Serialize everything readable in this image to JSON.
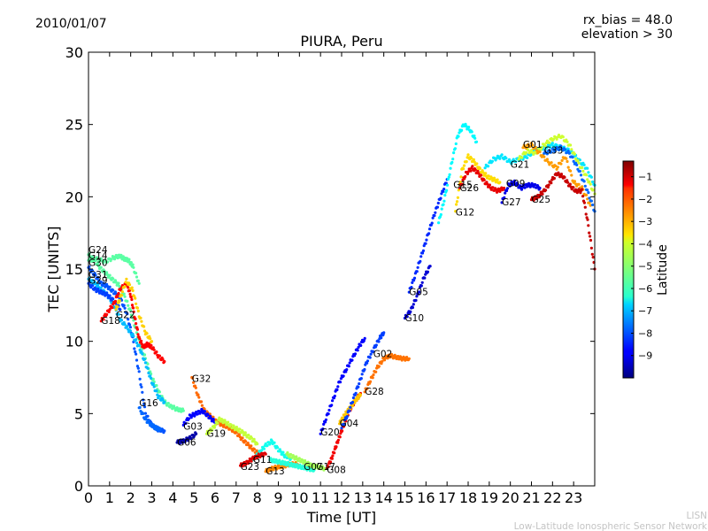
{
  "header": {
    "date": "2010/01/07",
    "bias": "rx_bias = 48.0",
    "elevation": "elevation > 30"
  },
  "watermark": {
    "line1": "LISN",
    "line2": "Low-Latitude Ionospheric Sensor Network"
  },
  "chart_data": {
    "type": "scatter",
    "title": "PIURA, Peru",
    "xlabel": "Time [UT]",
    "ylabel": "TEC [UNITS]",
    "xlim": [
      0,
      24
    ],
    "ylim": [
      0,
      30
    ],
    "xticks": [
      0,
      1,
      2,
      3,
      4,
      5,
      6,
      7,
      8,
      9,
      10,
      11,
      12,
      13,
      14,
      15,
      16,
      17,
      18,
      19,
      20,
      21,
      22,
      23
    ],
    "yticks": [
      0,
      5,
      10,
      15,
      20,
      25,
      30
    ],
    "colorbar": {
      "label": "Latitude",
      "range": [
        -10,
        -0.3
      ],
      "ticks": [
        -1,
        -2,
        -3,
        -4,
        -5,
        -6,
        -7,
        -8,
        -9
      ]
    },
    "series": [
      {
        "name": "G24",
        "lat": -5.5,
        "label": [
          0,
          16.1
        ],
        "x": [
          0,
          0.3,
          0.6,
          0.9,
          1.2,
          1.5,
          1.8,
          2.1,
          2.4,
          2.7,
          3.0,
          3.3,
          3.6,
          3.9,
          4.2,
          4.5
        ],
        "y": [
          16.0,
          15.6,
          15.0,
          14.6,
          14.2,
          13.8,
          12.8,
          11.6,
          10.0,
          8.8,
          7.5,
          6.6,
          5.8,
          5.5,
          5.3,
          5.2
        ]
      },
      {
        "name": "G14",
        "lat": -5.5,
        "label": [
          0,
          15.7
        ],
        "x": [
          0,
          0.4,
          0.8,
          1.2,
          1.5,
          1.7,
          1.9,
          2.1,
          2.4
        ],
        "y": [
          15.6,
          15.7,
          15.5,
          15.8,
          15.9,
          15.7,
          15.6,
          15.2,
          14.0
        ]
      },
      {
        "name": "G30",
        "lat": -8.0,
        "label": [
          0,
          15.2
        ],
        "x": [
          0,
          0.3,
          0.6,
          0.9,
          1.2,
          1.5,
          1.8,
          2.1,
          2.4,
          2.7,
          3.0,
          3.3,
          3.6
        ],
        "y": [
          15.1,
          14.6,
          14.0,
          13.8,
          13.4,
          13.0,
          12.0,
          10.2,
          7.8,
          5.0,
          4.2,
          3.9,
          3.8
        ]
      },
      {
        "name": "G31",
        "lat": -7.0,
        "label": [
          0,
          14.4
        ],
        "x": [
          0,
          0.3,
          0.6,
          0.9,
          1.2,
          1.5,
          1.8,
          2.1,
          2.4,
          2.7,
          3.0,
          3.3,
          3.6
        ],
        "y": [
          14.3,
          14.0,
          13.6,
          13.2,
          12.5,
          11.5,
          11.0,
          10.4,
          9.6,
          8.5,
          7.2,
          6.2,
          5.8
        ]
      },
      {
        "name": "G29",
        "lat": -8.2,
        "label": [
          0,
          14.0
        ],
        "x": [
          0,
          0.3,
          0.6,
          0.9,
          1.2,
          1.5
        ],
        "y": [
          14.0,
          13.6,
          13.4,
          13.2,
          12.8,
          12.2
        ]
      },
      {
        "name": "G18",
        "lat": -1.5,
        "label": [
          0.6,
          11.2
        ],
        "x": [
          0.6,
          0.9,
          1.2,
          1.5,
          1.8,
          2.0,
          2.2,
          2.4,
          2.6,
          2.8,
          3.0,
          3.3,
          3.6
        ],
        "y": [
          11.4,
          12.0,
          12.6,
          13.6,
          14.0,
          13.2,
          11.6,
          10.2,
          9.6,
          9.8,
          9.6,
          9.0,
          8.6
        ]
      },
      {
        "name": "G22",
        "lat": -3.5,
        "label": [
          1.3,
          11.6
        ],
        "x": [
          1.3,
          1.5,
          1.8,
          2.1,
          2.4,
          2.7,
          3.0
        ],
        "y": [
          12.2,
          13.0,
          14.2,
          13.5,
          11.8,
          10.6,
          10.0
        ]
      },
      {
        "name": "G16",
        "lat": -7.8,
        "label": [
          2.4,
          5.5
        ],
        "x": [
          2.4,
          2.7,
          3.0,
          3.2,
          3.4
        ],
        "y": [
          5.4,
          4.6,
          4.2,
          4.0,
          3.9
        ]
      },
      {
        "name": "G32",
        "lat": -2.5,
        "label": [
          4.9,
          7.2
        ],
        "x": [
          4.9,
          5.2,
          5.5,
          5.8,
          6.1,
          6.4,
          6.7,
          7.0,
          7.3,
          7.6,
          7.9,
          8.2
        ],
        "y": [
          7.5,
          6.2,
          5.2,
          4.8,
          4.4,
          4.2,
          4.0,
          3.7,
          3.2,
          2.8,
          2.4,
          2.1
        ]
      },
      {
        "name": "G03",
        "lat": -8.8,
        "label": [
          4.5,
          3.9
        ],
        "x": [
          4.5,
          4.8,
          5.1,
          5.4,
          5.7,
          6.0
        ],
        "y": [
          4.2,
          4.8,
          5.0,
          5.2,
          4.8,
          4.4
        ]
      },
      {
        "name": "G06",
        "lat": -9.6,
        "label": [
          4.2,
          2.8
        ],
        "x": [
          4.2,
          4.5,
          4.8,
          5.1
        ],
        "y": [
          3.0,
          3.1,
          3.3,
          3.6
        ]
      },
      {
        "name": "G19",
        "lat": -4.5,
        "label": [
          5.6,
          3.4
        ],
        "x": [
          5.6,
          5.9,
          6.2,
          6.5,
          6.8,
          7.1,
          7.4,
          7.7,
          8.0
        ],
        "y": [
          3.6,
          4.0,
          4.6,
          4.4,
          4.1,
          3.9,
          3.6,
          3.3,
          2.9
        ]
      },
      {
        "name": "G11",
        "lat": -6.2,
        "label": [
          7.8,
          1.6
        ],
        "x": [
          7.8,
          8.1,
          8.4,
          8.7,
          9.0,
          9.3,
          9.6
        ],
        "y": [
          1.8,
          2.3,
          2.8,
          3.1,
          2.5,
          2.1,
          1.9
        ]
      },
      {
        "name": "G23",
        "lat": -1.2,
        "label": [
          7.2,
          1.1
        ],
        "x": [
          7.2,
          7.5,
          7.8,
          8.1,
          8.4
        ],
        "y": [
          1.4,
          1.6,
          1.9,
          2.1,
          2.2
        ]
      },
      {
        "name": "G13",
        "lat": -2.8,
        "label": [
          8.4,
          0.8
        ],
        "x": [
          8.4,
          8.7,
          9.0,
          9.3,
          9.6,
          9.9
        ],
        "y": [
          1.0,
          1.2,
          1.3,
          1.4,
          1.5,
          1.5
        ]
      },
      {
        "name": "G07",
        "lat": -6.0,
        "label": [
          10.2,
          1.1
        ],
        "x": [
          8.6,
          8.9,
          9.2,
          9.5,
          9.8,
          10.1,
          10.4,
          10.7
        ],
        "y": [
          1.8,
          1.7,
          1.6,
          1.5,
          1.4,
          1.3,
          1.2,
          1.1
        ]
      },
      {
        "name": "G17",
        "lat": -4.8,
        "label": [
          10.8,
          1.1
        ],
        "x": [
          9.4,
          9.7,
          10.0,
          10.3,
          10.6,
          10.9,
          11.2
        ],
        "y": [
          2.2,
          2.0,
          1.8,
          1.6,
          1.4,
          1.3,
          1.2
        ]
      },
      {
        "name": "G08",
        "lat": -1.4,
        "label": [
          11.3,
          0.9
        ],
        "x": [
          11.3,
          11.5,
          11.7,
          11.9,
          12.1,
          12.3,
          12.6,
          12.9
        ],
        "y": [
          1.2,
          1.8,
          2.6,
          3.4,
          4.2,
          5.0,
          5.8,
          6.4
        ]
      },
      {
        "name": "G20",
        "lat": -8.8,
        "label": [
          11.0,
          3.5
        ],
        "x": [
          11.0,
          11.3,
          11.6,
          11.9,
          12.2,
          12.5,
          12.8,
          13.1
        ],
        "y": [
          3.6,
          4.8,
          6.0,
          7.2,
          8.0,
          8.8,
          9.6,
          10.2
        ]
      },
      {
        "name": "G04",
        "lat": -3.4,
        "label": [
          11.9,
          4.1
        ],
        "x": [
          11.9,
          12.1,
          12.3,
          12.5,
          12.7,
          12.9
        ],
        "y": [
          4.3,
          4.8,
          5.2,
          5.6,
          6.0,
          6.3
        ]
      },
      {
        "name": "G02",
        "lat": -8.2,
        "label": [
          13.5,
          8.9
        ],
        "x": [
          12.0,
          12.3,
          12.6,
          12.9,
          13.2,
          13.5,
          13.8,
          14.0
        ],
        "y": [
          4.0,
          5.0,
          6.2,
          7.4,
          8.6,
          9.4,
          10.2,
          10.6
        ]
      },
      {
        "name": "G28",
        "lat": -2.6,
        "label": [
          13.1,
          6.3
        ],
        "x": [
          13.1,
          13.4,
          13.7,
          14.0,
          14.3,
          14.6,
          14.9,
          15.2
        ],
        "y": [
          6.5,
          7.4,
          8.2,
          8.8,
          9.0,
          8.9,
          8.8,
          8.8
        ]
      },
      {
        "name": "G10",
        "lat": -9.2,
        "label": [
          15.0,
          11.4
        ],
        "x": [
          15.0,
          15.3,
          15.6,
          15.9,
          16.2
        ],
        "y": [
          11.6,
          12.2,
          13.2,
          14.4,
          15.2
        ]
      },
      {
        "name": "G05",
        "lat": -8.4,
        "label": [
          15.2,
          13.2
        ],
        "x": [
          15.2,
          15.5,
          15.8,
          16.1,
          16.4,
          16.7,
          17.0
        ],
        "y": [
          13.4,
          14.6,
          16.0,
          17.4,
          18.8,
          20.0,
          21.2
        ]
      },
      {
        "name": "G15",
        "lat": -6.4,
        "label": [
          17.3,
          20.6
        ],
        "x": [
          16.6,
          16.9,
          17.2,
          17.5,
          17.8,
          18.1,
          18.4
        ],
        "y": [
          18.2,
          20.0,
          22.2,
          24.2,
          25.0,
          24.6,
          23.8
        ]
      },
      {
        "name": "G12",
        "lat": -3.6,
        "label": [
          17.4,
          18.7
        ],
        "x": [
          17.4,
          17.7,
          18.0,
          18.3,
          18.6,
          18.9,
          19.2,
          19.5
        ],
        "y": [
          19.0,
          21.8,
          22.8,
          22.4,
          21.8,
          21.4,
          21.2,
          21.0
        ]
      },
      {
        "name": "G26",
        "lat": -1.3,
        "label": [
          17.6,
          20.4
        ],
        "x": [
          17.6,
          17.9,
          18.2,
          18.5,
          18.8,
          19.1,
          19.4,
          19.7
        ],
        "y": [
          20.6,
          21.6,
          22.0,
          21.6,
          21.0,
          20.6,
          20.4,
          20.6
        ]
      },
      {
        "name": "G27",
        "lat": -9.0,
        "label": [
          19.6,
          19.4
        ],
        "x": [
          19.6,
          19.9,
          20.2,
          20.5,
          20.8,
          21.1,
          21.4
        ],
        "y": [
          19.6,
          20.8,
          21.0,
          20.6,
          20.8,
          20.8,
          20.6
        ]
      },
      {
        "name": "G09",
        "lat": -6.6,
        "label": [
          19.8,
          20.7
        ],
        "x": [
          18.8,
          19.2,
          19.6,
          20.0,
          20.4,
          20.8,
          21.2,
          21.6,
          22.0,
          22.4,
          22.8,
          23.2,
          23.6,
          24.0
        ],
        "y": [
          22.0,
          22.6,
          22.8,
          22.4,
          22.6,
          22.8,
          23.2,
          23.4,
          23.6,
          23.4,
          23.2,
          22.6,
          22.0,
          20.8
        ]
      },
      {
        "name": "G21",
        "lat": -4.4,
        "label": [
          20.0,
          22.0
        ],
        "x": [
          20.4,
          20.8,
          21.2,
          21.6,
          22.0,
          22.4,
          22.8,
          23.2,
          23.6,
          24.0
        ],
        "y": [
          22.6,
          23.2,
          23.0,
          23.6,
          24.0,
          24.2,
          23.6,
          22.4,
          21.4,
          20.2
        ]
      },
      {
        "name": "G01",
        "lat": -3.0,
        "label": [
          20.6,
          23.4
        ],
        "x": [
          20.6,
          21.0,
          21.4,
          21.8,
          22.2,
          22.6,
          23.0,
          23.4,
          23.8
        ],
        "y": [
          23.4,
          23.6,
          23.0,
          22.4,
          22.0,
          22.8,
          21.0,
          20.6,
          19.4
        ]
      },
      {
        "name": "G25",
        "lat": -1.0,
        "label": [
          21.0,
          19.6
        ],
        "x": [
          21.0,
          21.3,
          21.6,
          21.9,
          22.2,
          22.5,
          22.8,
          23.1,
          23.4,
          23.7,
          24.0
        ],
        "y": [
          19.8,
          20.0,
          20.4,
          21.0,
          21.6,
          21.4,
          20.8,
          20.4,
          20.4,
          18.0,
          15.0
        ]
      },
      {
        "name": "G33",
        "lat": -7.8,
        "label": [
          21.6,
          23.0
        ],
        "x": [
          21.6,
          22.0,
          22.4,
          22.8,
          23.2,
          23.6,
          24.0
        ],
        "y": [
          23.0,
          23.2,
          23.4,
          23.0,
          22.0,
          20.6,
          19.0
        ]
      }
    ]
  }
}
